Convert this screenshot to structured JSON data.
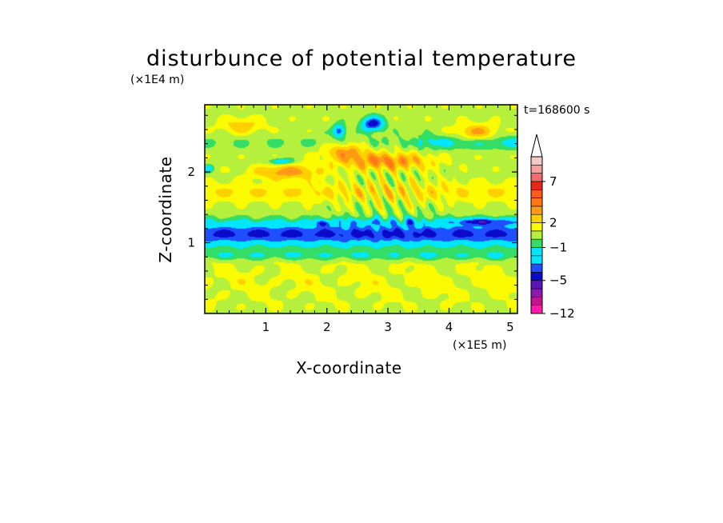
{
  "chart_data": {
    "type": "heatmap",
    "title": "disturbunce of potential temperature",
    "xlabel": "X-coordinate",
    "ylabel": "Z-coordinate",
    "x_multiplier": "(×1E5 m)",
    "y_multiplier": "(×1E4 m)",
    "time_label": "t=168600 s",
    "xlim": [
      0,
      5.12
    ],
    "ylim": [
      0,
      2.95
    ],
    "x_ticks": [
      1,
      2,
      3,
      4,
      5
    ],
    "x_tick_labels": [
      "1",
      "2",
      "3",
      "4",
      "5"
    ],
    "y_ticks": [
      1,
      2
    ],
    "y_tick_labels": [
      "1",
      "2"
    ],
    "colorbar": {
      "levels": [
        -12,
        -10,
        -8,
        -6,
        -5,
        -4,
        -3,
        -2,
        -1,
        0,
        1,
        2,
        3,
        4,
        5,
        6,
        7,
        8,
        9,
        10
      ],
      "colors": [
        "#ff1aaa",
        "#c51490",
        "#8c1aaa",
        "#5a16b8",
        "#0a0ac8",
        "#1e50ff",
        "#00e6ff",
        "#00e6ff",
        "#33dd66",
        "#b4f03c",
        "#fafa00",
        "#ffd000",
        "#ff9a14",
        "#ff7814",
        "#ff5a1e",
        "#e62814",
        "#f06e6e",
        "#f5a0a0",
        "#f5c8c8"
      ],
      "labeled_ticks": [
        "-12",
        "-5",
        "-1",
        "2",
        "7"
      ]
    },
    "structure": [
      {
        "feature": "cold band",
        "z": 1.05,
        "value": -1
      },
      {
        "feature": "cold layer",
        "z": 1.3,
        "value": -5
      },
      {
        "feature": "cold pockets aloft",
        "z": 2.65,
        "x_range": [
          2.1,
          3.3
        ],
        "value": -5
      },
      {
        "feature": "warm arc",
        "z": 2.15,
        "x_range": [
          1.8,
          4.0
        ],
        "value": 3
      },
      {
        "feature": "warm band upper-left",
        "z": 2.05,
        "x_range": [
          0.8,
          2.2
        ],
        "value": 3
      },
      {
        "feature": "warm blob upper-right",
        "z": 2.55,
        "x_range": [
          4.0,
          5.1
        ],
        "value": 3
      },
      {
        "feature": "near-surface layer",
        "z": 0.45,
        "value": 1
      }
    ]
  }
}
